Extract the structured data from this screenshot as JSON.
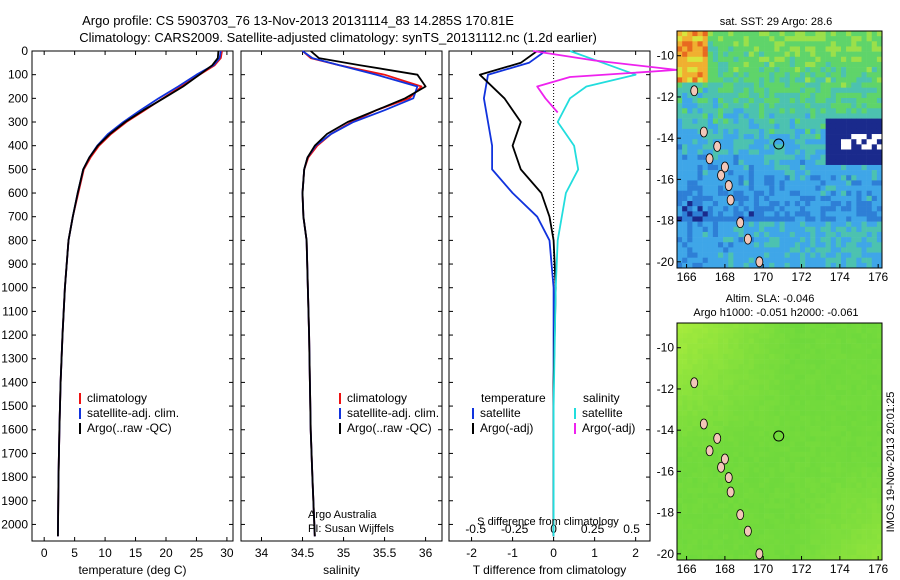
{
  "header": {
    "line1": "Argo profile: CS 5903703_76 13-Nov-2013 20131114_83 14.285S 170.81E",
    "line2": "Climatology: CARS2009. Satellite-adjusted climatology: synTS_20131112.nc (1.2d earlier)"
  },
  "colors": {
    "climatology": "#ee1111",
    "satellite": "#1133dd",
    "argo": "#000000",
    "sal_satellite": "#22dddd",
    "sal_argo": "#ee22ee"
  },
  "panel_labels": {
    "credit1": "Argo Australia",
    "credit2": "PI: Susan Wijffels",
    "diff_top_label": "S difference from climatology",
    "sst_title": "sat. SST: 29 Argo: 28.6",
    "sla_title1": "Altim. SLA: -0.046",
    "sla_title2": "Argo h1000: -0.051 h2000: -0.061",
    "imos_stamp": "IMOS 19-Nov-2013 20:01:25"
  },
  "legend_main": [
    "climatology",
    "satellite-adj. clim.",
    "Argo(..raw -QC)"
  ],
  "legend_diff": {
    "temp_title": "temperature",
    "sal_title": "salinity",
    "temp_items": [
      "satellite",
      "Argo(-adj)"
    ],
    "sal_items": [
      "satellite",
      "Argo(-adj)"
    ]
  },
  "chart_data": [
    {
      "type": "line",
      "id": "temperature",
      "xlabel": "temperature (deg C)",
      "xlim": [
        -2,
        31
      ],
      "ylim": [
        2070,
        0
      ],
      "xticks": [
        "0",
        "5",
        "10",
        "15",
        "20",
        "25",
        "30"
      ],
      "xtick_values": [
        0,
        5,
        10,
        15,
        20,
        25,
        30
      ],
      "yticks": [
        "0",
        "100",
        "200",
        "300",
        "400",
        "500",
        "600",
        "700",
        "800",
        "900",
        "1000",
        "1100",
        "1200",
        "1300",
        "1400",
        "1500",
        "1600",
        "1700",
        "1800",
        "1900",
        "2000"
      ],
      "series": [
        {
          "name": "climatology",
          "x": [
            29.2,
            29.0,
            28.0,
            25.5,
            22.5,
            19.5,
            16.5,
            13.5,
            11.0,
            9.0,
            7.6,
            6.5,
            5.6,
            4.7,
            4.0,
            3.4,
            3.0,
            2.7,
            2.5,
            2.35,
            2.25
          ],
          "y": [
            0,
            30,
            60,
            100,
            150,
            200,
            250,
            300,
            350,
            400,
            450,
            500,
            600,
            700,
            800,
            1000,
            1200,
            1400,
            1600,
            1800,
            2050
          ]
        },
        {
          "name": "satellite-adj. clim.",
          "x": [
            29.0,
            28.8,
            27.8,
            25.0,
            22.0,
            18.8,
            15.8,
            13.0,
            10.5,
            8.7,
            7.4,
            6.4,
            5.5,
            4.7,
            4.0,
            3.4,
            3.0,
            2.7,
            2.5,
            2.35,
            2.25
          ],
          "y": [
            0,
            30,
            60,
            100,
            150,
            200,
            250,
            300,
            350,
            400,
            450,
            500,
            600,
            700,
            800,
            1000,
            1200,
            1400,
            1600,
            1800,
            2050
          ]
        },
        {
          "name": "Argo(..raw -QC)",
          "x": [
            28.6,
            28.5,
            27.6,
            25.5,
            22.8,
            19.6,
            16.3,
            13.3,
            10.8,
            8.8,
            7.4,
            6.4,
            5.5,
            4.7,
            4.0,
            3.4,
            3.0,
            2.7,
            2.5,
            2.35,
            2.25
          ],
          "y": [
            0,
            30,
            60,
            100,
            150,
            200,
            250,
            300,
            350,
            400,
            450,
            500,
            600,
            700,
            800,
            1000,
            1200,
            1400,
            1600,
            1800,
            2050
          ]
        }
      ]
    },
    {
      "type": "line",
      "id": "salinity",
      "xlabel": "salinity",
      "xlim": [
        33.75,
        36.2
      ],
      "ylim": [
        2070,
        0
      ],
      "xticks": [
        "34",
        "34.5",
        "35",
        "35.5",
        "36"
      ],
      "xtick_values": [
        34,
        34.5,
        35,
        35.5,
        36
      ],
      "series": [
        {
          "name": "climatology",
          "x": [
            34.5,
            34.6,
            34.95,
            35.5,
            35.95,
            35.8,
            35.4,
            35.1,
            34.85,
            34.68,
            34.57,
            34.52,
            34.5,
            34.51,
            34.55,
            34.58,
            34.6,
            34.62,
            34.65
          ],
          "y": [
            0,
            30,
            60,
            100,
            150,
            200,
            250,
            300,
            350,
            400,
            450,
            500,
            600,
            700,
            800,
            1200,
            1600,
            1800,
            2050
          ]
        },
        {
          "name": "satellite-adj. clim.",
          "x": [
            34.5,
            34.62,
            34.95,
            35.4,
            35.9,
            35.85,
            35.5,
            35.12,
            34.85,
            34.66,
            34.56,
            34.52,
            34.5,
            34.51,
            34.55,
            34.58,
            34.6,
            34.62,
            34.65
          ],
          "y": [
            0,
            30,
            60,
            100,
            150,
            200,
            250,
            300,
            350,
            400,
            450,
            500,
            600,
            700,
            800,
            1200,
            1600,
            1800,
            2050
          ]
        },
        {
          "name": "Argo(..raw -QC)",
          "x": [
            34.6,
            34.7,
            35.2,
            35.9,
            36.0,
            35.75,
            35.4,
            35.05,
            34.8,
            34.65,
            34.56,
            34.52,
            34.5,
            34.51,
            34.55,
            34.58,
            34.6,
            34.62,
            34.65
          ],
          "y": [
            0,
            30,
            60,
            100,
            150,
            200,
            250,
            300,
            350,
            400,
            450,
            500,
            600,
            700,
            800,
            1200,
            1600,
            1800,
            2050
          ]
        }
      ]
    },
    {
      "type": "line",
      "id": "difference",
      "xlabel": "T difference from climatology",
      "xlim": [
        -2.55,
        2.35
      ],
      "ylim": [
        2070,
        0
      ],
      "xticks": [
        "-2",
        "-1",
        "0",
        "1",
        "2"
      ],
      "xtick_values": [
        -2,
        -1,
        0,
        1,
        2
      ],
      "top_xticks": [
        "-0.5",
        "-0.25",
        "0",
        "0.25",
        "0.5"
      ],
      "top_xtick_values": [
        -1.9,
        -0.95,
        0.0,
        0.95,
        1.9
      ],
      "series": [
        {
          "name": "temperature satellite",
          "x": [
            -0.2,
            -0.6,
            -1.6,
            -1.7,
            -1.6,
            -1.5,
            -1.5,
            -1.0,
            -0.4,
            -0.1,
            0.0,
            0.0,
            0.0,
            0.0
          ],
          "y": [
            0,
            50,
            100,
            200,
            300,
            400,
            500,
            600,
            700,
            800,
            1000,
            1400,
            1800,
            2050
          ]
        },
        {
          "name": "temperature Argo(-adj)",
          "x": [
            -0.4,
            -0.8,
            -1.8,
            -1.2,
            -0.8,
            -1.0,
            -0.8,
            -0.3,
            -0.1,
            0.0,
            0.05,
            0.0,
            0.0,
            0.0
          ],
          "y": [
            0,
            50,
            100,
            200,
            300,
            400,
            500,
            600,
            700,
            800,
            1000,
            1400,
            1800,
            2050
          ]
        },
        {
          "name": "salinity satellite",
          "x": [
            0.4,
            1.2,
            2.0,
            0.8,
            0.4,
            0.1,
            0.5,
            0.6,
            0.3,
            0.1,
            0.05,
            0.0,
            0.0
          ],
          "y": [
            0,
            50,
            100,
            150,
            200,
            300,
            400,
            500,
            600,
            800,
            1000,
            1500,
            2050
          ]
        },
        {
          "name": "salinity Argo(-adj)",
          "x": [
            -0.5,
            1.0,
            3.0,
            0.4,
            -0.4,
            -0.2,
            0.1
          ],
          "y": [
            0,
            40,
            80,
            110,
            150,
            200,
            260
          ]
        }
      ]
    },
    {
      "type": "heatmap",
      "id": "sst_map",
      "title": "sat. SST: 29 Argo: 28.6",
      "xlim": [
        165.5,
        176.2
      ],
      "ylim": [
        -20.3,
        -8.8
      ],
      "xticks": [
        "166",
        "168",
        "170",
        "172",
        "174",
        "176"
      ],
      "xtick_values": [
        166,
        168,
        170,
        172,
        174,
        176
      ],
      "yticks": [
        "-10",
        "-12",
        "-14",
        "-16",
        "-18",
        "-20"
      ],
      "ytick_values": [
        -10,
        -12,
        -14,
        -16,
        -18,
        -20
      ],
      "marker": {
        "lon": 170.81,
        "lat": -14.285
      }
    },
    {
      "type": "heatmap",
      "id": "sla_map",
      "title": "Altim. SLA: -0.046",
      "xlim": [
        165.5,
        176.2
      ],
      "ylim": [
        -20.3,
        -8.8
      ],
      "xticks": [
        "166",
        "168",
        "170",
        "172",
        "174",
        "176"
      ],
      "xtick_values": [
        166,
        168,
        170,
        172,
        174,
        176
      ],
      "yticks": [
        "-10",
        "-12",
        "-14",
        "-16",
        "-18",
        "-20"
      ],
      "ytick_values": [
        -10,
        -12,
        -14,
        -16,
        -18,
        -20
      ],
      "marker": {
        "lon": 170.81,
        "lat": -14.285
      }
    }
  ]
}
